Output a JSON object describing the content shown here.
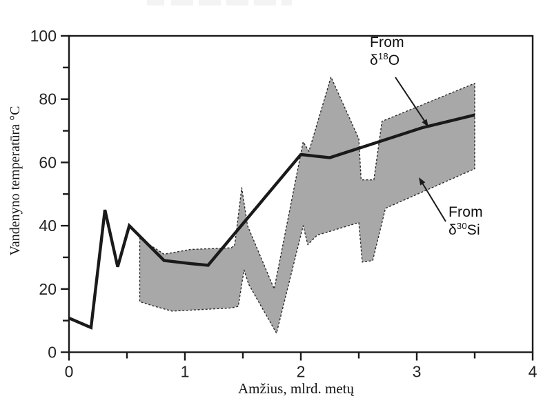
{
  "chart_data": {
    "type": "line",
    "title": "",
    "xlabel": "Amžius, mlrd. metų",
    "ylabel": "Vandenyno temperatūra °C",
    "xlim": [
      0,
      4
    ],
    "ylim": [
      0,
      100
    ],
    "x_ticks": [
      0,
      0.5,
      1,
      1.5,
      2,
      2.5,
      3,
      3.5,
      4
    ],
    "x_tick_labels": [
      "0",
      "1",
      "2",
      "3",
      "4"
    ],
    "y_ticks": [
      0,
      10,
      20,
      30,
      40,
      50,
      60,
      70,
      80,
      90,
      100
    ],
    "y_tick_labels": [
      "0",
      "20",
      "40",
      "60",
      "80",
      "100"
    ],
    "grid": false,
    "frame": "full-box",
    "legend_position": "in-plot annotations with arrows",
    "colors": {
      "line": "#1a1a1a",
      "band_fill": "#a8a8a8",
      "band_edge": "#2c2c2c",
      "axis": "#1a1a1a",
      "text": "#111111"
    },
    "series": [
      {
        "name": "From δ¹⁸O",
        "type": "line",
        "color": "#1a1a1a",
        "points": [
          [
            0,
            10.8
          ],
          [
            0.19,
            7.8
          ],
          [
            0.31,
            45
          ],
          [
            0.42,
            27
          ],
          [
            0.52,
            40
          ],
          [
            0.82,
            29
          ],
          [
            1.05,
            28
          ],
          [
            1.2,
            27.5
          ],
          [
            2.0,
            62.5
          ],
          [
            2.25,
            61.5
          ],
          [
            3.05,
            71
          ],
          [
            3.5,
            75
          ]
        ]
      },
      {
        "name": "From δ³⁰Si",
        "type": "band",
        "fill": "#a8a8a8",
        "edge_color": "#2c2c2c",
        "upper": [
          [
            0.61,
            36
          ],
          [
            0.82,
            31
          ],
          [
            1.05,
            32.5
          ],
          [
            1.4,
            33
          ],
          [
            1.43,
            34
          ],
          [
            1.49,
            52
          ],
          [
            1.54,
            40
          ],
          [
            1.77,
            20
          ],
          [
            2.02,
            66.5
          ],
          [
            2.07,
            63.5
          ],
          [
            2.26,
            87
          ],
          [
            2.5,
            67.5
          ],
          [
            2.52,
            54.5
          ],
          [
            2.63,
            54.5
          ],
          [
            2.7,
            73
          ],
          [
            3.5,
            85
          ]
        ],
        "lower": [
          [
            0.61,
            16
          ],
          [
            0.74,
            14.5
          ],
          [
            0.89,
            13
          ],
          [
            1.4,
            14
          ],
          [
            1.46,
            14.5
          ],
          [
            1.51,
            26
          ],
          [
            1.55,
            21.5
          ],
          [
            1.79,
            6
          ],
          [
            2.02,
            40
          ],
          [
            2.06,
            34
          ],
          [
            2.14,
            37
          ],
          [
            2.5,
            41
          ],
          [
            2.53,
            28.5
          ],
          [
            2.62,
            29
          ],
          [
            2.73,
            45.5
          ],
          [
            3.5,
            58
          ]
        ]
      }
    ],
    "annotations": [
      {
        "line1": "From",
        "delta": "δ",
        "superscript": "18",
        "element": "O",
        "full": "From δ¹⁸O",
        "points_to": "thick line"
      },
      {
        "line1": "From",
        "delta": "δ",
        "superscript": "30",
        "element": "Si",
        "full": "From δ³⁰Si",
        "points_to": "gray band"
      }
    ]
  }
}
